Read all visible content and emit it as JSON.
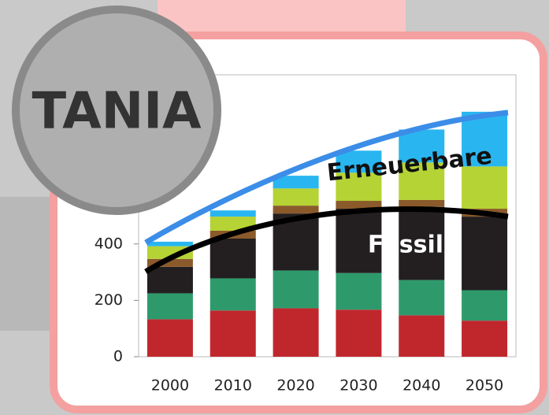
{
  "badge": "TANIA",
  "chart_data": {
    "type": "stacked-bar",
    "categories": [
      "2000",
      "2010",
      "2020",
      "2030",
      "2040",
      "2050"
    ],
    "series": [
      {
        "color": "#c0272d",
        "values": [
          133,
          164,
          172,
          167,
          147,
          128
        ]
      },
      {
        "color": "#2e9a6c",
        "values": [
          92,
          114,
          134,
          130,
          125,
          108
        ]
      },
      {
        "color": "#231f20",
        "values": [
          94,
          141,
          202,
          228,
          259,
          261
        ]
      },
      {
        "color": "#8b5a2b",
        "values": [
          28,
          28,
          28,
          28,
          25,
          28
        ]
      },
      {
        "color": "#b5d334",
        "values": [
          45,
          50,
          61,
          100,
          133,
          150
        ]
      },
      {
        "color": "#29b6f0",
        "values": [
          16,
          22,
          45,
          78,
          117,
          194
        ]
      }
    ],
    "annotations": [
      "Erneuerbare",
      "Fossil"
    ],
    "ylim": [
      0,
      1000
    ],
    "yticks": [
      0,
      200,
      400
    ]
  }
}
